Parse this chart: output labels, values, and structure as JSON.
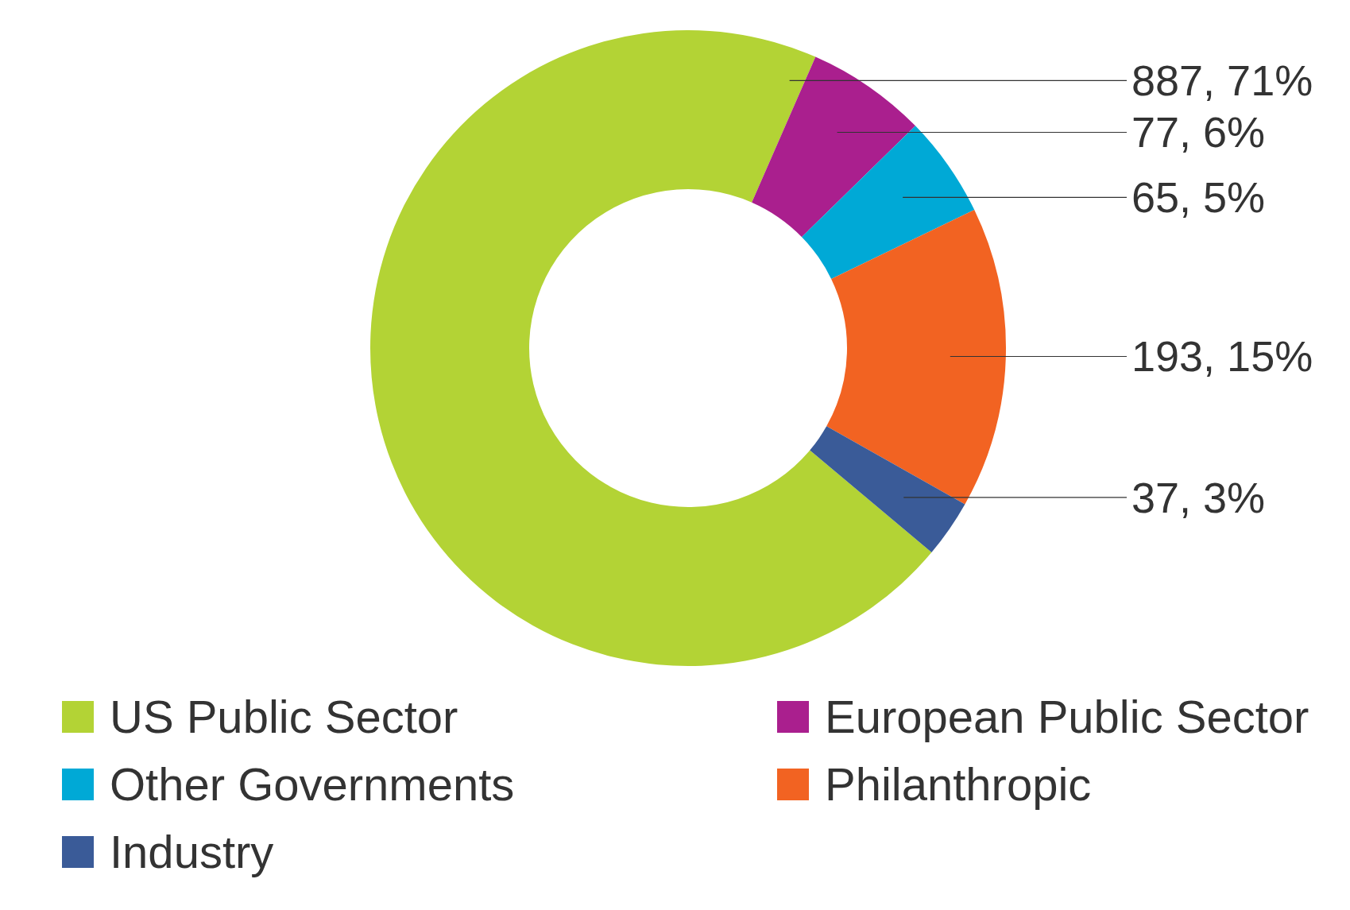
{
  "chart_data": {
    "type": "donut",
    "categories": [
      "US Public Sector",
      "European Public Sector",
      "Other Governments",
      "Philanthropic",
      "Industry"
    ],
    "values": [
      887,
      77,
      65,
      193,
      37
    ],
    "colors": [
      "#b3d335",
      "#aa1f8e",
      "#00a9d6",
      "#f26322",
      "#3a5b98"
    ],
    "value_labels": [
      "887, 71%",
      "77, 6%",
      "65, 5%",
      "193, 15%",
      "37, 3%"
    ],
    "legend": "bottom"
  }
}
